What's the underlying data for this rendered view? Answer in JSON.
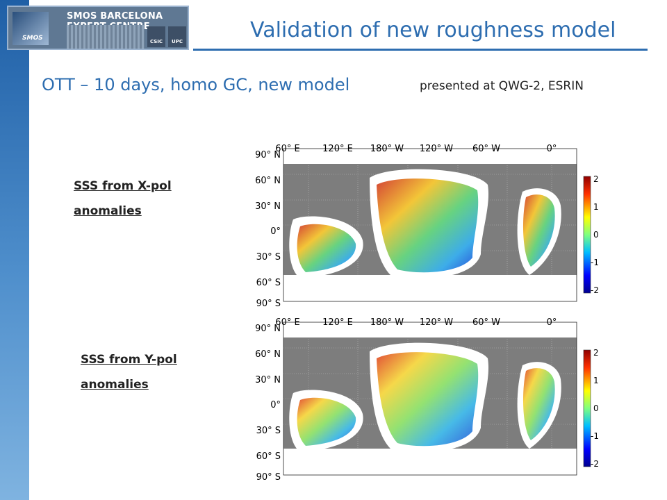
{
  "header": {
    "logo_title": "SMOS BARCELONA EXPERT CENTRE",
    "logo_smos": "SMOS",
    "logo_csic": "CSIC",
    "logo_upc": "UPC",
    "title": "Validation of new roughness model",
    "title_color": "#2d6db0"
  },
  "subtitle": "OTT – 10 days, homo GC, new model",
  "presented": "presented at QWG-2, ESRIN",
  "panels": [
    {
      "label_line1": "SSS from X-pol",
      "label_line2": "anomalies",
      "lon_labels": [
        "60° E",
        "120° E",
        "180° W",
        "120° W",
        "60° W",
        "0°"
      ],
      "lat_labels": [
        "90° N",
        "60° N",
        "30° N",
        "0°",
        "30° S",
        "60° S",
        "90° S"
      ],
      "colorbar_ticks": [
        "2",
        "1",
        "0",
        "-1",
        "-2"
      ]
    },
    {
      "label_line1": "SSS from Y-pol",
      "label_line2": "anomalies",
      "lon_labels": [
        "60° E",
        "120° E",
        "180° W",
        "120° W",
        "60° W",
        "0°"
      ],
      "lat_labels": [
        "90° N",
        "60° N",
        "30° N",
        "0°",
        "30° S",
        "60° S",
        "90° S"
      ],
      "colorbar_ticks": [
        "2",
        "1",
        "0",
        "-1",
        "-2"
      ]
    }
  ]
}
